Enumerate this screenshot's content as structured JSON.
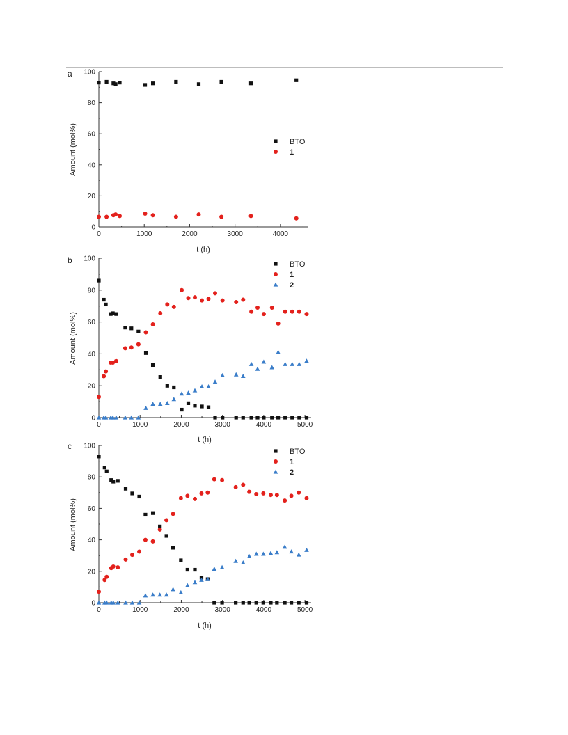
{
  "colors": {
    "BTO": "#111111",
    "1": "#e3211c",
    "2": "#3a7dc9",
    "axis": "#333333",
    "rule": "#bdbdbd"
  },
  "chart_data": [
    {
      "type": "scatter",
      "panel_label": "a",
      "xlabel": "t (h)",
      "ylabel": "Amount (mol%)",
      "xlim": [
        0,
        4600
      ],
      "ylim": [
        0,
        100
      ],
      "xticks": [
        0,
        1000,
        2000,
        3000,
        4000
      ],
      "yticks": [
        0,
        20,
        40,
        60,
        80,
        100
      ],
      "grid": false,
      "legend_position": "right-middle",
      "series": [
        {
          "name": "BTO",
          "marker": "square",
          "x": [
            0,
            170,
            320,
            370,
            460,
            1020,
            1190,
            1700,
            2200,
            2700,
            3350,
            4350
          ],
          "y": [
            93,
            93.5,
            92.5,
            92,
            93,
            91.5,
            92.5,
            93.5,
            92,
            93.5,
            92.5,
            94.5
          ]
        },
        {
          "name": "1",
          "marker": "circle",
          "x": [
            0,
            170,
            320,
            370,
            460,
            1020,
            1190,
            1700,
            2200,
            2700,
            3350,
            4350
          ],
          "y": [
            6.5,
            6.5,
            7.5,
            8,
            7,
            8.5,
            7.5,
            6.5,
            8,
            6.5,
            7,
            5.5
          ]
        }
      ]
    },
    {
      "type": "scatter",
      "panel_label": "b",
      "xlabel": "t (h)",
      "ylabel": "Amount (mol%)",
      "xlim": [
        0,
        5150
      ],
      "ylim": [
        0,
        100
      ],
      "xticks": [
        0,
        1000,
        2000,
        3000,
        4000,
        5000
      ],
      "yticks": [
        0,
        20,
        40,
        60,
        80,
        100
      ],
      "grid": false,
      "legend_position": "top-right",
      "series": [
        {
          "name": "BTO",
          "marker": "square",
          "x": [
            0,
            120,
            170,
            290,
            340,
            420,
            640,
            790,
            960,
            1140,
            1310,
            1490,
            1660,
            1820,
            2010,
            2170,
            2330,
            2500,
            2660,
            2820,
            3000,
            3330,
            3500,
            3700,
            3850,
            4000,
            4200,
            4350,
            4520,
            4690,
            4860,
            5040
          ],
          "y": [
            86,
            74,
            71,
            65,
            65.5,
            65,
            56.5,
            56,
            54,
            40.5,
            33,
            25.5,
            20,
            19,
            5,
            9,
            7.5,
            7,
            6.5,
            0,
            0,
            0,
            0,
            0,
            0,
            0,
            0,
            0,
            0,
            0,
            0,
            0
          ]
        },
        {
          "name": "1",
          "marker": "circle",
          "x": [
            0,
            120,
            170,
            290,
            340,
            420,
            640,
            790,
            960,
            1140,
            1310,
            1490,
            1660,
            1820,
            2010,
            2170,
            2330,
            2500,
            2660,
            2820,
            3000,
            3330,
            3500,
            3700,
            3850,
            4000,
            4200,
            4350,
            4520,
            4690,
            4860,
            5040
          ],
          "y": [
            13,
            26,
            29,
            34.5,
            34.5,
            35.5,
            43.5,
            44,
            46,
            53.5,
            58.5,
            65.5,
            71,
            69.5,
            80,
            75,
            75.5,
            73.5,
            74.5,
            78,
            73.5,
            72.5,
            74,
            66.5,
            69,
            65,
            69,
            59,
            66.5,
            66.5,
            66.5,
            65
          ]
        },
        {
          "name": "2",
          "marker": "triangle",
          "x": [
            0,
            120,
            170,
            290,
            340,
            420,
            640,
            790,
            960,
            1140,
            1310,
            1490,
            1660,
            1820,
            2010,
            2170,
            2330,
            2500,
            2660,
            2820,
            3000,
            3330,
            3500,
            3700,
            3850,
            4000,
            4200,
            4350,
            4520,
            4690,
            4860,
            5040
          ],
          "y": [
            0,
            0,
            0,
            0,
            0,
            0,
            0,
            0,
            0,
            6,
            8.5,
            8.5,
            9,
            11.5,
            15,
            15.5,
            17,
            19.5,
            19.5,
            22.5,
            26.5,
            27,
            26,
            33.5,
            30.5,
            35,
            31.5,
            41,
            33.5,
            33.5,
            33.5,
            35.5
          ]
        }
      ]
    },
    {
      "type": "scatter",
      "panel_label": "c",
      "xlabel": "t (h)",
      "ylabel": "Amount (mol%)",
      "xlim": [
        0,
        5150
      ],
      "ylim": [
        0,
        100
      ],
      "xticks": [
        0,
        1000,
        2000,
        3000,
        4000,
        5000
      ],
      "yticks": [
        0,
        20,
        40,
        60,
        80,
        100
      ],
      "grid": false,
      "legend_position": "top-right",
      "series": [
        {
          "name": "BTO",
          "marker": "square",
          "x": [
            0,
            140,
            190,
            300,
            350,
            460,
            650,
            810,
            980,
            1130,
            1310,
            1480,
            1640,
            1800,
            1990,
            2150,
            2330,
            2490,
            2640,
            2800,
            2990,
            3320,
            3500,
            3650,
            3820,
            3990,
            4170,
            4320,
            4510,
            4670,
            4850,
            5040
          ],
          "y": [
            93,
            86,
            83.5,
            78,
            77,
            77.5,
            72.5,
            69.5,
            67.5,
            56,
            57,
            48.5,
            42.5,
            35,
            27,
            21,
            21,
            16,
            15,
            0,
            0,
            0,
            0,
            0,
            0,
            0,
            0,
            0,
            0,
            0,
            0,
            0
          ]
        },
        {
          "name": "1",
          "marker": "circle",
          "x": [
            0,
            140,
            190,
            300,
            350,
            460,
            650,
            810,
            980,
            1130,
            1310,
            1480,
            1640,
            1800,
            1990,
            2150,
            2330,
            2490,
            2640,
            2800,
            2990,
            3320,
            3500,
            3650,
            3820,
            3990,
            4170,
            4320,
            4510,
            4670,
            4850,
            5040
          ],
          "y": [
            7,
            14.5,
            16.5,
            22,
            23,
            22.5,
            27.5,
            30.5,
            32.5,
            40,
            39,
            46.5,
            52.5,
            56.5,
            66.5,
            68,
            66,
            69.5,
            70,
            78.5,
            78,
            73.5,
            75,
            70.5,
            69,
            69.5,
            68.5,
            68.5,
            65,
            68,
            70,
            66.5
          ]
        },
        {
          "name": "2",
          "marker": "triangle",
          "x": [
            0,
            140,
            190,
            300,
            350,
            460,
            650,
            810,
            980,
            1130,
            1310,
            1480,
            1640,
            1800,
            1990,
            2150,
            2330,
            2490,
            2640,
            2800,
            2990,
            3320,
            3500,
            3650,
            3820,
            3990,
            4170,
            4320,
            4510,
            4670,
            4850,
            5040
          ],
          "y": [
            0,
            0,
            0,
            0,
            0,
            0,
            0,
            0,
            0,
            4.5,
            5,
            5,
            5,
            8.5,
            6.5,
            11,
            13,
            14.5,
            15,
            21.5,
            22.5,
            26.5,
            25.5,
            29.5,
            31,
            31,
            31.5,
            32,
            35.5,
            32.5,
            30.5,
            33.5
          ]
        }
      ]
    }
  ]
}
